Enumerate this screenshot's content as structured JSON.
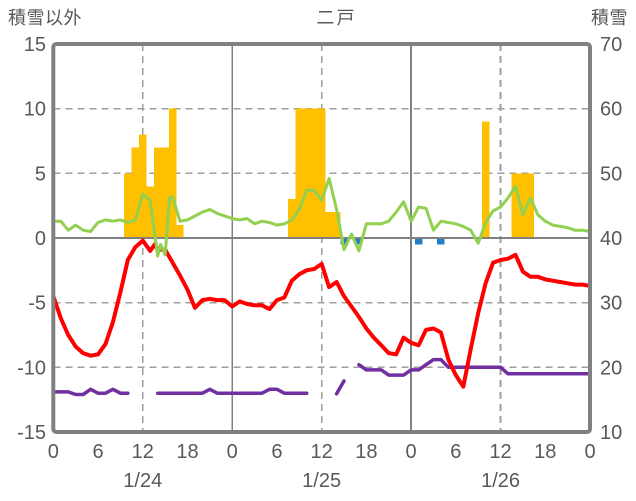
{
  "header": {
    "left_axis_title": "積雪以外",
    "station_title": "二戸",
    "right_axis_title": "積雪"
  },
  "colors": {
    "frame": "#808080",
    "grid_dashed": "#9e9e9e",
    "grid_solid": "#808080",
    "zero_line": "#808080",
    "label_text": "#595959",
    "precip_bar": "#FFC000",
    "snowfall_mark": "#1F7EC8",
    "green_line": "#92D050",
    "temperature_line": "#FF0000",
    "snow_depth_line": "#7030A0",
    "background": "#ffffff"
  },
  "chart_data": {
    "type": "bar",
    "subtype": "combo-bar-line",
    "title": "二戸",
    "x_unit": "hours from 1/24 0:00",
    "x_range": [
      0,
      72
    ],
    "left_axis": {
      "title": "積雪以外",
      "range": [
        -15,
        15
      ],
      "tick_values": [
        15,
        10,
        5,
        0,
        -5,
        -10,
        -15
      ],
      "tick_labels": [
        "15",
        "10",
        "5",
        "0",
        "-5",
        "-10",
        "-15"
      ]
    },
    "right_axis": {
      "title": "積雪",
      "range": [
        10,
        70
      ],
      "tick_values": [
        70,
        60,
        50,
        40,
        30,
        20,
        10
      ],
      "tick_labels": [
        "70",
        "60",
        "50",
        "40",
        "30",
        "20",
        "10"
      ]
    },
    "x_ticks": {
      "hours": [
        0,
        6,
        12,
        18,
        24,
        30,
        36,
        42,
        48,
        54,
        60,
        66,
        72
      ],
      "labels": [
        "0",
        "6",
        "12",
        "18",
        "0",
        "6",
        "12",
        "18",
        "0",
        "6",
        "12",
        "18",
        "0"
      ]
    },
    "date_labels": [
      {
        "label": "1/24",
        "hour": 12
      },
      {
        "label": "1/25",
        "hour": 36
      },
      {
        "label": "1/26",
        "hour": 60
      }
    ],
    "gridlines": {
      "horizontal_dashed_values": [
        10,
        5,
        -5,
        -10
      ],
      "vertical_dashed_hours": [
        12,
        36,
        60
      ],
      "vertical_solid_hours": [
        24,
        48
      ],
      "zero_line": 0
    },
    "series": [
      {
        "name": "precipitation-bars",
        "type": "bar",
        "axis": "left",
        "color": "#FFC000",
        "bar_width_hours": 1,
        "points": [
          [
            10,
            5
          ],
          [
            11,
            7
          ],
          [
            12,
            8
          ],
          [
            13,
            4
          ],
          [
            14,
            7
          ],
          [
            15,
            7
          ],
          [
            16,
            10
          ],
          [
            17,
            1
          ],
          [
            32,
            3
          ],
          [
            33,
            10
          ],
          [
            34,
            10
          ],
          [
            35,
            10
          ],
          [
            36,
            10
          ],
          [
            37,
            2
          ],
          [
            38,
            2
          ],
          [
            58,
            9
          ],
          [
            62,
            5
          ],
          [
            63,
            5
          ],
          [
            64,
            5
          ]
        ]
      },
      {
        "name": "snowfall-marks",
        "type": "bar",
        "axis": "left",
        "color": "#1F7EC8",
        "bar_width_hours": 1,
        "points": [
          [
            39,
            -0.5
          ],
          [
            41,
            -0.5
          ],
          [
            49,
            -0.5
          ],
          [
            52,
            -0.5
          ]
        ]
      },
      {
        "name": "green-line",
        "type": "line",
        "axis": "left",
        "color": "#92D050",
        "width": 3,
        "points": [
          [
            0,
            1.3
          ],
          [
            1,
            1.3
          ],
          [
            2,
            0.6
          ],
          [
            3,
            1.0
          ],
          [
            4,
            0.6
          ],
          [
            5,
            0.5
          ],
          [
            6,
            1.2
          ],
          [
            7,
            1.4
          ],
          [
            8,
            1.3
          ],
          [
            9,
            1.4
          ],
          [
            10,
            1.2
          ],
          [
            11,
            1.4
          ],
          [
            12,
            3.4
          ],
          [
            13,
            2.9
          ],
          [
            14,
            -1.4
          ],
          [
            14.4,
            -0.5
          ],
          [
            15,
            -1.3
          ],
          [
            15.6,
            3.1
          ],
          [
            16,
            3.2
          ],
          [
            17,
            1.3
          ],
          [
            18,
            1.4
          ],
          [
            19,
            1.7
          ],
          [
            20,
            2.0
          ],
          [
            21,
            2.2
          ],
          [
            22,
            1.9
          ],
          [
            23,
            1.7
          ],
          [
            24,
            1.5
          ],
          [
            25,
            1.4
          ],
          [
            26,
            1.5
          ],
          [
            27,
            1.1
          ],
          [
            28,
            1.3
          ],
          [
            29,
            1.2
          ],
          [
            30,
            1.0
          ],
          [
            31,
            1.1
          ],
          [
            32,
            1.4
          ],
          [
            33,
            2.2
          ],
          [
            34,
            3.7
          ],
          [
            35,
            3.7
          ],
          [
            36,
            2.9
          ],
          [
            37,
            4.6
          ],
          [
            38,
            2.2
          ],
          [
            39,
            -0.9
          ],
          [
            40,
            0.3
          ],
          [
            41,
            -1.0
          ],
          [
            42,
            1.1
          ],
          [
            43,
            1.1
          ],
          [
            44,
            1.1
          ],
          [
            45,
            1.3
          ],
          [
            46,
            2.0
          ],
          [
            47,
            2.8
          ],
          [
            48,
            1.3
          ],
          [
            49,
            2.4
          ],
          [
            50,
            2.3
          ],
          [
            51,
            0.6
          ],
          [
            52,
            1.3
          ],
          [
            53,
            1.2
          ],
          [
            54,
            1.1
          ],
          [
            55,
            0.9
          ],
          [
            56,
            0.6
          ],
          [
            57,
            -0.4
          ],
          [
            58,
            1.2
          ],
          [
            59,
            2.1
          ],
          [
            60,
            2.4
          ],
          [
            61,
            3.1
          ],
          [
            62,
            4.0
          ],
          [
            63,
            1.8
          ],
          [
            64,
            3.1
          ],
          [
            65,
            1.8
          ],
          [
            66,
            1.3
          ],
          [
            67,
            1.0
          ],
          [
            68,
            0.9
          ],
          [
            69,
            0.8
          ],
          [
            70,
            0.6
          ],
          [
            71,
            0.6
          ],
          [
            72,
            0.5
          ]
        ]
      },
      {
        "name": "snow-depth-line",
        "type": "line",
        "axis": "right",
        "color": "#7030A0",
        "width": 3.5,
        "segments": [
          [
            [
              0,
              16.2
            ],
            [
              1,
              16.2
            ],
            [
              2,
              16.2
            ],
            [
              3,
              15.8
            ],
            [
              4,
              15.8
            ],
            [
              5,
              16.6
            ],
            [
              6,
              16.0
            ],
            [
              7,
              16.0
            ],
            [
              8,
              16.6
            ],
            [
              9,
              16.0
            ],
            [
              10,
              16.0
            ]
          ],
          [
            [
              14,
              16.0
            ],
            [
              15,
              16.0
            ],
            [
              16,
              16.0
            ],
            [
              17,
              16.0
            ],
            [
              18,
              16.0
            ],
            [
              19,
              16.0
            ],
            [
              20,
              16.0
            ],
            [
              21,
              16.6
            ],
            [
              22,
              16.0
            ],
            [
              23,
              16.0
            ],
            [
              24,
              16.0
            ],
            [
              25,
              16.0
            ],
            [
              26,
              16.0
            ],
            [
              27,
              16.0
            ],
            [
              28,
              16.0
            ],
            [
              29,
              16.6
            ],
            [
              30,
              16.6
            ],
            [
              31,
              16.0
            ],
            [
              32,
              16.0
            ],
            [
              33,
              16.0
            ],
            [
              34,
              16.0
            ]
          ],
          [
            [
              38,
              15.9
            ],
            [
              39,
              17.9
            ]
          ],
          [
            [
              41,
              20.4
            ],
            [
              42,
              19.6
            ],
            [
              43,
              19.6
            ],
            [
              44,
              19.6
            ],
            [
              45,
              18.8
            ],
            [
              46,
              18.8
            ],
            [
              47,
              18.8
            ],
            [
              48,
              19.6
            ],
            [
              49,
              19.6
            ],
            [
              50,
              20.4
            ],
            [
              51,
              21.2
            ],
            [
              52,
              21.2
            ],
            [
              53,
              20.0
            ],
            [
              54,
              20.0
            ],
            [
              55,
              20.0
            ],
            [
              56,
              20.0
            ],
            [
              57,
              20.0
            ],
            [
              58,
              20.0
            ],
            [
              59,
              20.0
            ],
            [
              60,
              20.0
            ],
            [
              61,
              19.0
            ],
            [
              62,
              19.0
            ],
            [
              63,
              19.0
            ],
            [
              64,
              19.0
            ],
            [
              65,
              19.0
            ],
            [
              66,
              19.0
            ],
            [
              67,
              19.0
            ],
            [
              68,
              19.0
            ],
            [
              69,
              19.0
            ],
            [
              70,
              19.0
            ],
            [
              71,
              19.0
            ],
            [
              72,
              19.0
            ]
          ]
        ]
      },
      {
        "name": "temperature-line",
        "type": "line",
        "axis": "left",
        "color": "#FF0000",
        "width": 4,
        "points": [
          [
            0,
            -4.5
          ],
          [
            1,
            -6.2
          ],
          [
            2,
            -7.5
          ],
          [
            3,
            -8.4
          ],
          [
            4,
            -8.9
          ],
          [
            5,
            -9.1
          ],
          [
            6,
            -9.0
          ],
          [
            7,
            -8.2
          ],
          [
            8,
            -6.5
          ],
          [
            9,
            -4.2
          ],
          [
            10,
            -1.7
          ],
          [
            11,
            -0.7
          ],
          [
            12,
            -0.2
          ],
          [
            13,
            -1.0
          ],
          [
            13.6,
            -0.5
          ],
          [
            14,
            -0.9
          ],
          [
            15,
            -0.9
          ],
          [
            16,
            -1.9
          ],
          [
            17,
            -2.9
          ],
          [
            18,
            -4.0
          ],
          [
            19,
            -5.4
          ],
          [
            20,
            -4.8
          ],
          [
            21,
            -4.7
          ],
          [
            22,
            -4.8
          ],
          [
            23,
            -4.8
          ],
          [
            24,
            -5.3
          ],
          [
            25,
            -4.9
          ],
          [
            26,
            -5.1
          ],
          [
            27,
            -5.2
          ],
          [
            28,
            -5.2
          ],
          [
            29,
            -5.5
          ],
          [
            30,
            -4.8
          ],
          [
            31,
            -4.6
          ],
          [
            32,
            -3.3
          ],
          [
            33,
            -2.8
          ],
          [
            34,
            -2.5
          ],
          [
            35,
            -2.4
          ],
          [
            36,
            -2.0
          ],
          [
            37,
            -3.8
          ],
          [
            38,
            -3.4
          ],
          [
            39,
            -4.5
          ],
          [
            40,
            -5.3
          ],
          [
            41,
            -6.1
          ],
          [
            42,
            -7.0
          ],
          [
            43,
            -7.7
          ],
          [
            44,
            -8.3
          ],
          [
            45,
            -8.9
          ],
          [
            46,
            -9.0
          ],
          [
            47,
            -7.7
          ],
          [
            48,
            -8.1
          ],
          [
            49,
            -8.3
          ],
          [
            50,
            -7.1
          ],
          [
            51,
            -7.0
          ],
          [
            52,
            -7.3
          ],
          [
            53,
            -9.4
          ],
          [
            54,
            -10.6
          ],
          [
            55,
            -11.5
          ],
          [
            56,
            -8.6
          ],
          [
            57,
            -5.8
          ],
          [
            58,
            -3.5
          ],
          [
            59,
            -1.9
          ],
          [
            60,
            -1.7
          ],
          [
            61,
            -1.6
          ],
          [
            62,
            -1.3
          ],
          [
            63,
            -2.6
          ],
          [
            64,
            -3.0
          ],
          [
            65,
            -3.0
          ],
          [
            66,
            -3.2
          ],
          [
            67,
            -3.3
          ],
          [
            68,
            -3.4
          ],
          [
            69,
            -3.5
          ],
          [
            70,
            -3.6
          ],
          [
            71,
            -3.6
          ],
          [
            72,
            -3.7
          ]
        ]
      }
    ]
  }
}
